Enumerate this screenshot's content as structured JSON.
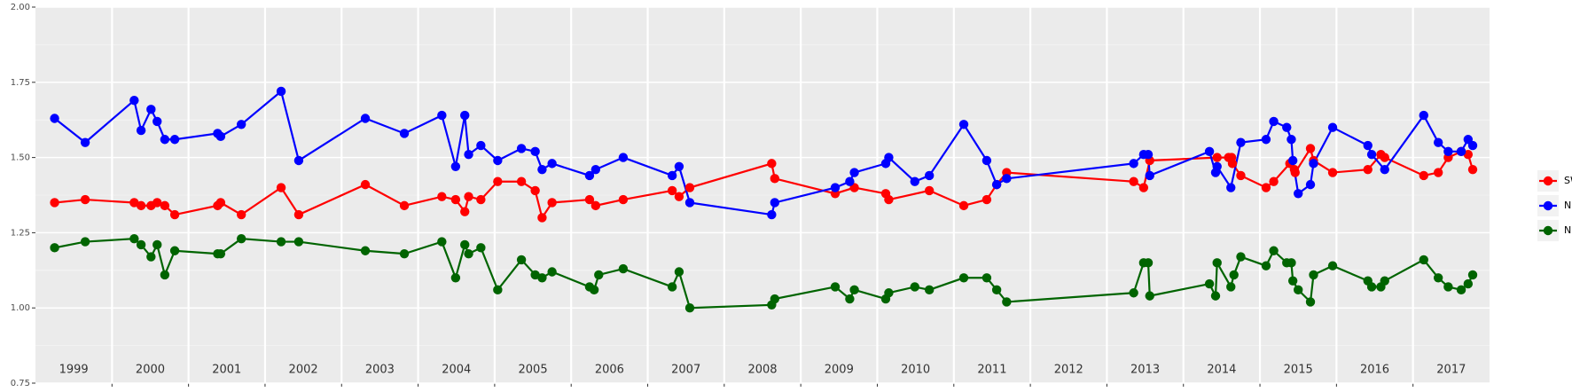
{
  "chart_data": {
    "type": "line",
    "xlim": [
      1999,
      2018
    ],
    "ylim": [
      0.75,
      2.0
    ],
    "xticks": [
      {
        "value": 1999.5,
        "label": "1999"
      },
      {
        "value": 2000.5,
        "label": "2000"
      },
      {
        "value": 2001.5,
        "label": "2001"
      },
      {
        "value": 2002.5,
        "label": "2002"
      },
      {
        "value": 2003.5,
        "label": "2003"
      },
      {
        "value": 2004.5,
        "label": "2004"
      },
      {
        "value": 2005.5,
        "label": "2005"
      },
      {
        "value": 2006.5,
        "label": "2006"
      },
      {
        "value": 2007.5,
        "label": "2007"
      },
      {
        "value": 2008.5,
        "label": "2008"
      },
      {
        "value": 2009.5,
        "label": "2009"
      },
      {
        "value": 2010.5,
        "label": "2010"
      },
      {
        "value": 2011.5,
        "label": "2011"
      },
      {
        "value": 2012.5,
        "label": "2012"
      },
      {
        "value": 2013.5,
        "label": "2013"
      },
      {
        "value": 2014.5,
        "label": "2014"
      },
      {
        "value": 2015.5,
        "label": "2015"
      },
      {
        "value": 2016.5,
        "label": "2016"
      },
      {
        "value": 2017.5,
        "label": "2017"
      }
    ],
    "yticks": [
      {
        "value": 0.75,
        "label": "0.75"
      },
      {
        "value": 1.0,
        "label": "1.00"
      },
      {
        "value": 1.25,
        "label": "1.25"
      },
      {
        "value": 1.5,
        "label": "1.50"
      },
      {
        "value": 1.75,
        "label": "1.75"
      },
      {
        "value": 2.0,
        "label": "2.00"
      }
    ],
    "grid": true,
    "legend": "right",
    "series": [
      {
        "name": "SWIR",
        "color": "#ff0000",
        "x": [
          1999.25,
          1999.65,
          2000.29,
          2000.38,
          2000.51,
          2000.59,
          2000.69,
          2000.82,
          2001.38,
          2001.42,
          2001.69,
          2002.21,
          2002.44,
          2003.31,
          2003.82,
          2004.31,
          2004.49,
          2004.61,
          2004.66,
          2004.82,
          2005.04,
          2005.35,
          2005.53,
          2005.62,
          2005.75,
          2006.24,
          2006.32,
          2006.68,
          2007.32,
          2007.41,
          2007.55,
          2008.62,
          2008.66,
          2009.45,
          2009.7,
          2010.11,
          2010.15,
          2010.68,
          2011.13,
          2011.43,
          2011.56,
          2011.69,
          2013.35,
          2013.48,
          2013.56,
          2014.44,
          2014.59,
          2014.63,
          2014.64,
          2014.75,
          2015.08,
          2015.18,
          2015.39,
          2015.45,
          2015.46,
          2015.66,
          2015.7,
          2015.95,
          2016.41,
          2016.58,
          2016.63,
          2017.14,
          2017.33,
          2017.46,
          2017.63,
          2017.72,
          2017.78
        ],
        "values": [
          1.35,
          1.36,
          1.35,
          1.34,
          1.34,
          1.35,
          1.34,
          1.31,
          1.34,
          1.35,
          1.31,
          1.4,
          1.31,
          1.41,
          1.34,
          1.37,
          1.36,
          1.32,
          1.37,
          1.36,
          1.42,
          1.42,
          1.39,
          1.3,
          1.35,
          1.36,
          1.34,
          1.36,
          1.39,
          1.37,
          1.4,
          1.48,
          1.43,
          1.38,
          1.4,
          1.38,
          1.36,
          1.39,
          1.34,
          1.36,
          1.41,
          1.45,
          1.42,
          1.4,
          1.49,
          1.5,
          1.5,
          1.5,
          1.48,
          1.44,
          1.4,
          1.42,
          1.48,
          1.46,
          1.45,
          1.53,
          1.49,
          1.45,
          1.46,
          1.51,
          1.5,
          1.44,
          1.45,
          1.5,
          1.52,
          1.51,
          1.46
        ]
      },
      {
        "name": "NDVI",
        "color": "#0000ff",
        "x": [
          1999.25,
          1999.65,
          2000.29,
          2000.38,
          2000.51,
          2000.59,
          2000.69,
          2000.82,
          2001.38,
          2001.42,
          2001.69,
          2002.21,
          2002.44,
          2003.31,
          2003.82,
          2004.31,
          2004.49,
          2004.61,
          2004.66,
          2004.82,
          2005.04,
          2005.35,
          2005.53,
          2005.62,
          2005.75,
          2006.24,
          2006.32,
          2006.68,
          2007.32,
          2007.41,
          2007.55,
          2008.62,
          2008.66,
          2009.45,
          2009.64,
          2009.7,
          2010.11,
          2010.15,
          2010.49,
          2010.68,
          2011.13,
          2011.43,
          2011.56,
          2011.69,
          2013.35,
          2013.48,
          2013.54,
          2013.56,
          2014.34,
          2014.42,
          2014.44,
          2014.62,
          2014.75,
          2015.08,
          2015.18,
          2015.35,
          2015.41,
          2015.43,
          2015.5,
          2015.66,
          2015.7,
          2015.95,
          2016.41,
          2016.46,
          2016.63,
          2017.14,
          2017.33,
          2017.46,
          2017.63,
          2017.72,
          2017.78
        ],
        "values": [
          1.63,
          1.55,
          1.69,
          1.59,
          1.66,
          1.62,
          1.56,
          1.56,
          1.58,
          1.57,
          1.61,
          1.72,
          1.49,
          1.63,
          1.58,
          1.64,
          1.47,
          1.64,
          1.51,
          1.54,
          1.49,
          1.53,
          1.52,
          1.46,
          1.48,
          1.44,
          1.46,
          1.5,
          1.44,
          1.47,
          1.35,
          1.31,
          1.35,
          1.4,
          1.42,
          1.45,
          1.48,
          1.5,
          1.42,
          1.44,
          1.61,
          1.49,
          1.41,
          1.43,
          1.48,
          1.51,
          1.51,
          1.44,
          1.52,
          1.45,
          1.47,
          1.4,
          1.55,
          1.56,
          1.62,
          1.6,
          1.56,
          1.49,
          1.38,
          1.41,
          1.48,
          1.6,
          1.54,
          1.51,
          1.46,
          1.64,
          1.55,
          1.52,
          1.52,
          1.56,
          1.54
        ]
      },
      {
        "name": "NDWI",
        "color": "#006400",
        "x": [
          1999.25,
          1999.65,
          2000.29,
          2000.38,
          2000.51,
          2000.59,
          2000.69,
          2000.82,
          2001.38,
          2001.42,
          2001.69,
          2002.21,
          2002.44,
          2003.31,
          2003.82,
          2004.31,
          2004.49,
          2004.61,
          2004.66,
          2004.82,
          2005.04,
          2005.35,
          2005.53,
          2005.62,
          2005.75,
          2006.24,
          2006.3,
          2006.36,
          2006.68,
          2007.32,
          2007.41,
          2007.55,
          2008.62,
          2008.66,
          2009.45,
          2009.64,
          2009.7,
          2010.11,
          2010.15,
          2010.49,
          2010.68,
          2011.13,
          2011.43,
          2011.56,
          2011.69,
          2013.35,
          2013.48,
          2013.54,
          2013.56,
          2014.34,
          2014.42,
          2014.44,
          2014.62,
          2014.66,
          2014.75,
          2015.08,
          2015.18,
          2015.35,
          2015.41,
          2015.43,
          2015.5,
          2015.66,
          2015.7,
          2015.95,
          2016.41,
          2016.46,
          2016.58,
          2016.63,
          2017.14,
          2017.33,
          2017.46,
          2017.63,
          2017.72,
          2017.78
        ],
        "values": [
          1.2,
          1.22,
          1.23,
          1.21,
          1.17,
          1.21,
          1.11,
          1.19,
          1.18,
          1.18,
          1.23,
          1.22,
          1.22,
          1.19,
          1.18,
          1.22,
          1.1,
          1.21,
          1.18,
          1.2,
          1.06,
          1.16,
          1.11,
          1.1,
          1.12,
          1.07,
          1.06,
          1.11,
          1.13,
          1.07,
          1.12,
          1.0,
          1.01,
          1.03,
          1.07,
          1.03,
          1.06,
          1.03,
          1.05,
          1.07,
          1.06,
          1.1,
          1.1,
          1.06,
          1.02,
          1.05,
          1.15,
          1.15,
          1.04,
          1.08,
          1.04,
          1.15,
          1.07,
          1.11,
          1.17,
          1.14,
          1.19,
          1.15,
          1.15,
          1.09,
          1.06,
          1.02,
          1.11,
          1.14,
          1.09,
          1.07,
          1.07,
          1.09,
          1.16,
          1.1,
          1.07,
          1.06,
          1.08,
          1.11
        ]
      }
    ]
  }
}
